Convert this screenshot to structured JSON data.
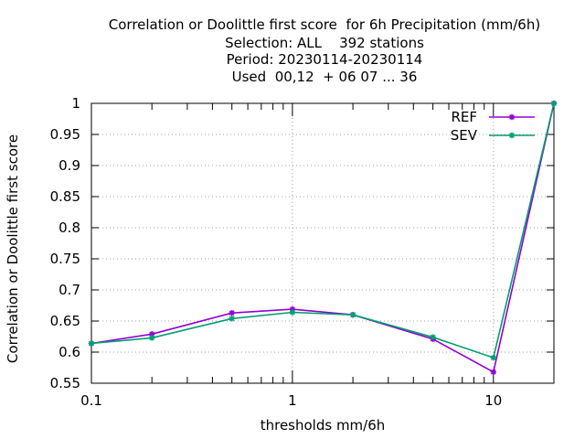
{
  "title_lines": [
    "Correlation or Doolittle first score  for 6h Precipitation (mm/6h)",
    "Selection: ALL    392 stations",
    "Period: 20230114-20230114",
    "Used  00,12  + 06 07 ... 36"
  ],
  "chart_data": {
    "type": "line",
    "title": "Correlation or Doolittle first score  for 6h Precipitation (mm/6h)",
    "xlabel": "thresholds mm/6h",
    "ylabel": "Correlation or Doolittle first score",
    "x_scale": "log",
    "xlim": [
      0.1,
      20
    ],
    "ylim": [
      0.55,
      1.0
    ],
    "x_tick_labels": [
      "0.1",
      "1",
      "10"
    ],
    "y_ticks": [
      0.55,
      0.6,
      0.65,
      0.7,
      0.75,
      0.8,
      0.85,
      0.9,
      0.95,
      1.0
    ],
    "y_tick_labels": [
      "0.55",
      "0.6",
      "0.65",
      "0.7",
      "0.75",
      "0.8",
      "0.85",
      "0.9",
      "0.95",
      "1"
    ],
    "grid": true,
    "legend_position": "top-right",
    "x": [
      0.1,
      0.2,
      0.5,
      1,
      2,
      5,
      10,
      20
    ],
    "series": [
      {
        "name": "REF",
        "color": "#9400d3",
        "values": [
          0.614,
          0.629,
          0.663,
          0.669,
          0.66,
          0.621,
          0.568,
          1.0
        ]
      },
      {
        "name": "SEV",
        "color": "#009e73",
        "values": [
          0.614,
          0.623,
          0.654,
          0.664,
          0.66,
          0.624,
          0.591,
          1.0
        ]
      }
    ]
  }
}
